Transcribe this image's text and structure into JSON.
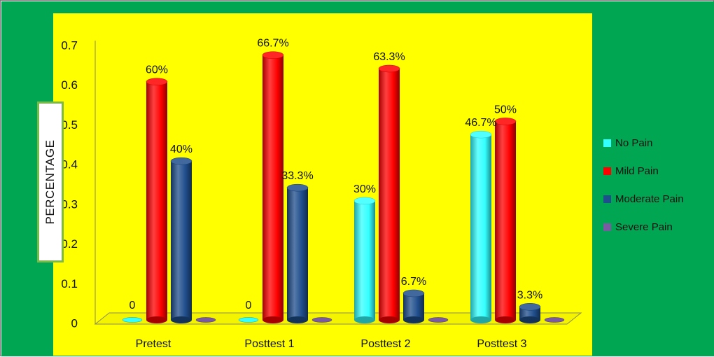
{
  "colors": {
    "outer_background": "#00a651",
    "plot_background": "#ffff00",
    "label_border": "#7fb84a"
  },
  "chart_data": {
    "type": "bar",
    "title": "",
    "xlabel": "",
    "ylabel": "PERCENTAGE",
    "ylim": [
      0,
      0.7
    ],
    "yticks": [
      "0",
      "0.1",
      "0.2",
      "0.3",
      "0.4",
      "0.5",
      "0.6",
      "0.7"
    ],
    "categories": [
      "Pretest",
      "Posttest 1",
      "Posttest 2",
      "Posttest 3"
    ],
    "legend_position": "right",
    "series": [
      {
        "name": "No Pain",
        "color": "#33ffff",
        "values": [
          0,
          0,
          0.3,
          0.467
        ],
        "labels": [
          "0",
          "0",
          "30%",
          "46.7%"
        ]
      },
      {
        "name": "Mild Pain",
        "color": "#ff0000",
        "values": [
          0.6,
          0.667,
          0.633,
          0.5
        ],
        "labels": [
          "60%",
          "66.7%",
          "63.3%",
          "50%"
        ]
      },
      {
        "name": "Moderate Pain",
        "color": "#1f4e8c",
        "values": [
          0.4,
          0.333,
          0.067,
          0.033
        ],
        "labels": [
          "40%",
          "33.3%",
          "6.7%",
          "3.3%"
        ]
      },
      {
        "name": "Severe Pain",
        "color": "#7a5aa0",
        "values": [
          0,
          0,
          0,
          0
        ],
        "labels": [
          "",
          "",
          "",
          ""
        ]
      }
    ]
  }
}
